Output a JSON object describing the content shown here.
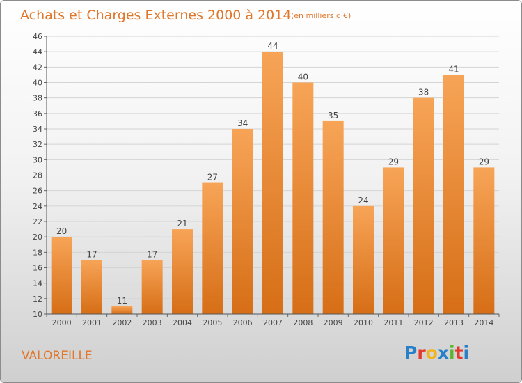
{
  "page": {
    "title": "Achats et Charges Externes 2000 à 2014",
    "subtitle": "(en milliers d'€)",
    "commune": "VALOREILLE",
    "logo": {
      "text": "Proxiti",
      "letters": [
        "P",
        "r",
        "o",
        "x",
        "i",
        "t",
        "i"
      ],
      "colors": [
        "#2a7fc9",
        "#e4392c",
        "#f2b417",
        "#2a7fc9",
        "#5cb531",
        "#e4392c",
        "#2a7fc9"
      ]
    }
  },
  "chart_data": {
    "type": "bar",
    "title": "Achats et Charges Externes 2000 à 2014",
    "subtitle": "(en milliers d'€)",
    "categories": [
      "2000",
      "2001",
      "2002",
      "2003",
      "2004",
      "2005",
      "2006",
      "2007",
      "2008",
      "2009",
      "2010",
      "2011",
      "2012",
      "2013",
      "2014"
    ],
    "values": [
      20,
      17,
      11,
      17,
      21,
      27,
      34,
      44,
      40,
      35,
      24,
      29,
      38,
      41,
      29
    ],
    "ylim": [
      10,
      46
    ],
    "yticks": [
      10,
      12,
      14,
      16,
      18,
      20,
      22,
      24,
      26,
      28,
      30,
      32,
      34,
      36,
      38,
      40,
      42,
      44,
      46
    ],
    "grid": true,
    "colors": {
      "bar_top": "#f7a457",
      "bar_bottom": "#d66e16",
      "grid": "#d4d4d4"
    }
  }
}
